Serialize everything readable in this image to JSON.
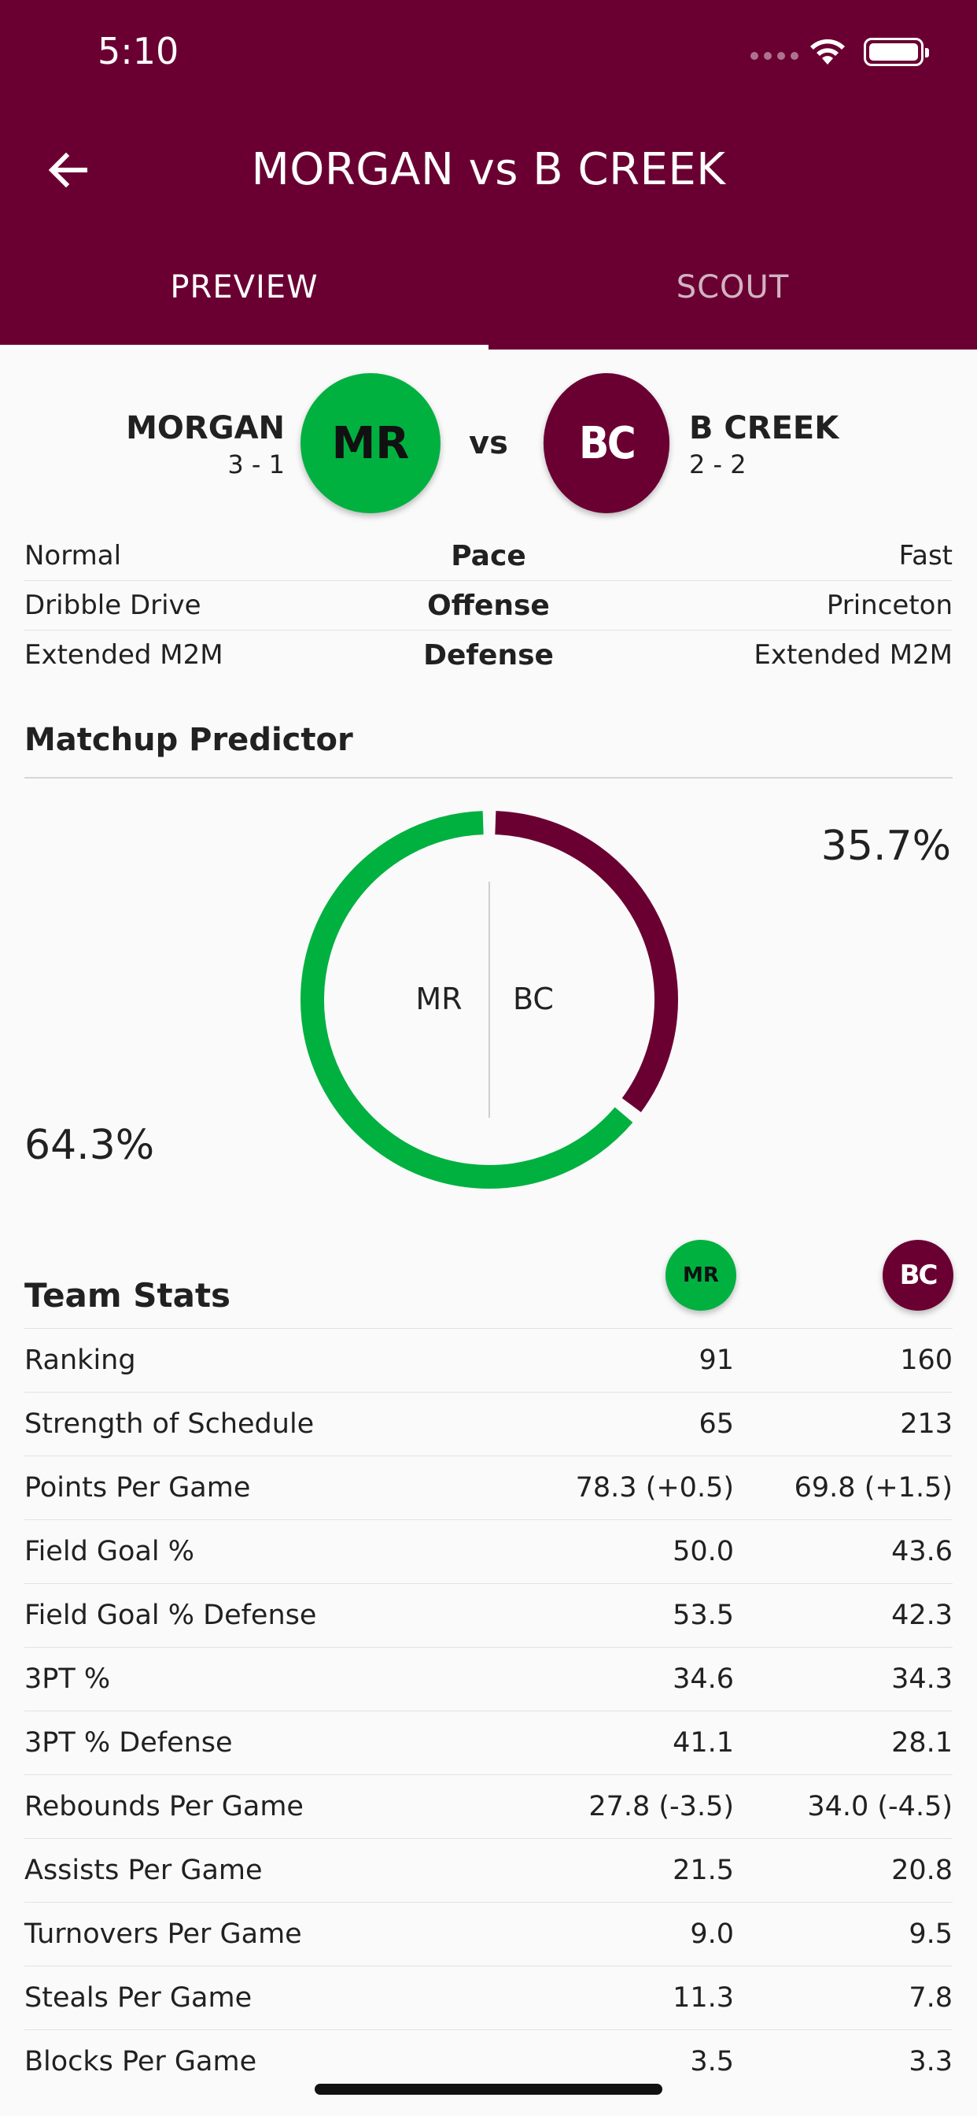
{
  "status_bar": {
    "time": "5:10"
  },
  "header": {
    "title": "MORGAN vs B CREEK"
  },
  "tabs": [
    {
      "label": "PREVIEW",
      "selected": true
    },
    {
      "label": "SCOUT",
      "selected": false
    }
  ],
  "matchup": {
    "left": {
      "name": "MORGAN",
      "record": "3 - 1",
      "abbr": "MR",
      "color": "#00b140"
    },
    "vs": "vs",
    "right": {
      "name": "B CREEK",
      "record": "2 - 2",
      "abbr": "BC",
      "color": "#6a0032"
    }
  },
  "comparison": [
    {
      "left": "Normal",
      "label": "Pace",
      "right": "Fast"
    },
    {
      "left": "Dribble Drive",
      "label": "Offense",
      "right": "Princeton"
    },
    {
      "left": "Extended M2M",
      "label": "Defense",
      "right": "Extended M2M"
    }
  ],
  "predictor": {
    "title": "Matchup Predictor",
    "left_pct": "64.3%",
    "right_pct": "35.7%",
    "left_label": "MR",
    "right_label": "BC",
    "left_fraction": 0.643
  },
  "team_stats": {
    "title": "Team Stats",
    "left_abbr": "MR",
    "right_abbr": "BC",
    "rows": [
      {
        "label": "Ranking",
        "left": "91",
        "right": "160"
      },
      {
        "label": "Strength of Schedule",
        "left": "65",
        "right": "213"
      },
      {
        "label": "Points Per Game",
        "left": "78.3 (+0.5)",
        "right": "69.8 (+1.5)"
      },
      {
        "label": "Field Goal %",
        "left": "50.0",
        "right": "43.6"
      },
      {
        "label": "Field Goal % Defense",
        "left": "53.5",
        "right": "42.3"
      },
      {
        "label": "3PT %",
        "left": "34.6",
        "right": "34.3"
      },
      {
        "label": "3PT % Defense",
        "left": "41.1",
        "right": "28.1"
      },
      {
        "label": "Rebounds Per Game",
        "left": "27.8 (-3.5)",
        "right": "34.0 (-4.5)"
      },
      {
        "label": "Assists Per Game",
        "left": "21.5",
        "right": "20.8"
      },
      {
        "label": "Turnovers Per Game",
        "left": "9.0",
        "right": "9.5"
      },
      {
        "label": "Steals Per Game",
        "left": "11.3",
        "right": "7.8"
      },
      {
        "label": "Blocks Per Game",
        "left": "3.5",
        "right": "3.3"
      }
    ]
  },
  "icons": {
    "back": "arrow-left-icon",
    "wifi": "wifi-icon",
    "battery": "battery-icon",
    "signal": "signal-icon"
  }
}
